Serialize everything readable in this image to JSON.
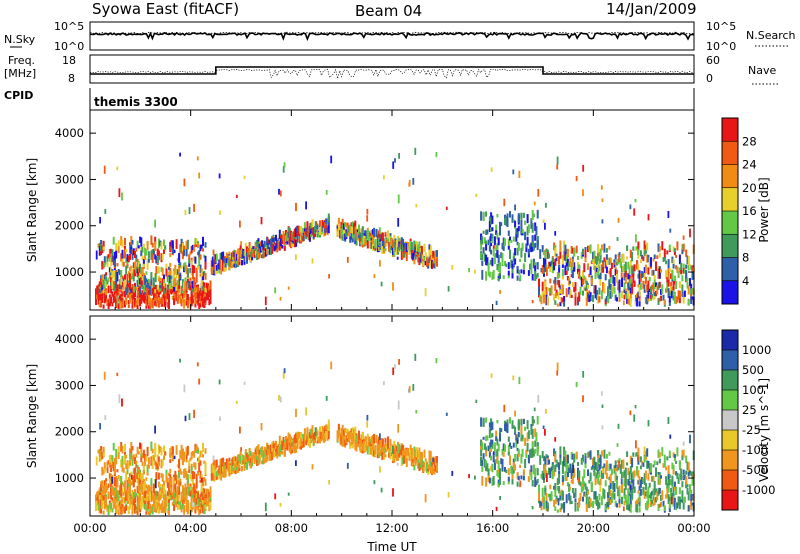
{
  "header": {
    "station": "Syowa East (fitACF)",
    "beam": "Beam 04",
    "date": "14/Jan/2009"
  },
  "nsky_panel": {
    "left_label": "N.Sky",
    "right_label": "N.Search",
    "left_ticks": [
      "10^5",
      "10^0"
    ],
    "right_ticks": [
      "10^5",
      "10^0"
    ]
  },
  "freq_panel": {
    "left_label_1": "Freq.",
    "left_label_2": "[MHz]",
    "right_label": "Nave",
    "left_ticks": [
      "18",
      "8"
    ],
    "right_ticks": [
      "60",
      "0"
    ]
  },
  "cpid": {
    "label": "CPID",
    "value": "themis 3300"
  },
  "colors": {
    "power": [
      "#1a12e6",
      "#2e5fa8",
      "#3f9a5c",
      "#64c847",
      "#e8d02c",
      "#f08c14",
      "#f05a14",
      "#e81616"
    ],
    "velocity": [
      "#e81616",
      "#f05a14",
      "#f0961e",
      "#e8c82a",
      "#c8c8c8",
      "#64c847",
      "#3f9a5c",
      "#2e5fa8",
      "#1a2aa8"
    ]
  },
  "chart_data": [
    {
      "type": "heatmap",
      "name": "Power",
      "ylabel": "Slant Range [km]",
      "yticks": [
        "4000",
        "3000",
        "2000",
        "1000"
      ],
      "xticks": [
        "00:00",
        "04:00",
        "08:00",
        "12:00",
        "16:00",
        "20:00",
        "00:00"
      ],
      "ylim": [
        180,
        4500
      ],
      "xlim": [
        0,
        24
      ],
      "colorbar": {
        "label": "Power [dB]",
        "ticks": [
          "28",
          "24",
          "20",
          "16",
          "12",
          "8",
          "4"
        ]
      },
      "echo_regions": [
        {
          "t0": 0.2,
          "t1": 4.8,
          "r0": 200,
          "r1": 650,
          "value": "high"
        },
        {
          "t0": 0.3,
          "t1": 4.6,
          "r0": 500,
          "r1": 1600,
          "value": "mixed"
        },
        {
          "t0": 4.8,
          "t1": 9.5,
          "r0": 900,
          "r1": 2100,
          "value": "mixed"
        },
        {
          "t0": 9.8,
          "t1": 13.8,
          "r0": 1100,
          "r1": 1900,
          "value": "mixed"
        },
        {
          "t0": 15.5,
          "t1": 17.8,
          "r0": 800,
          "r1": 2200,
          "value": "low"
        },
        {
          "t0": 17.8,
          "t1": 24.0,
          "r0": 250,
          "r1": 1500,
          "value": "mixed"
        }
      ]
    },
    {
      "type": "heatmap",
      "name": "Velocity",
      "ylabel": "Slant Range [km]",
      "xlabel": "Time UT",
      "yticks": [
        "4000",
        "3000",
        "2000",
        "1000"
      ],
      "xticks": [
        "00:00",
        "04:00",
        "08:00",
        "12:00",
        "16:00",
        "20:00",
        "00:00"
      ],
      "ylim": [
        180,
        4500
      ],
      "xlim": [
        0,
        24
      ],
      "colorbar": {
        "label": "Velocity [m s^-1]",
        "ticks": [
          "1000",
          "500",
          "100",
          "25",
          "-25",
          "-100",
          "-500",
          "-1000"
        ]
      }
    }
  ]
}
